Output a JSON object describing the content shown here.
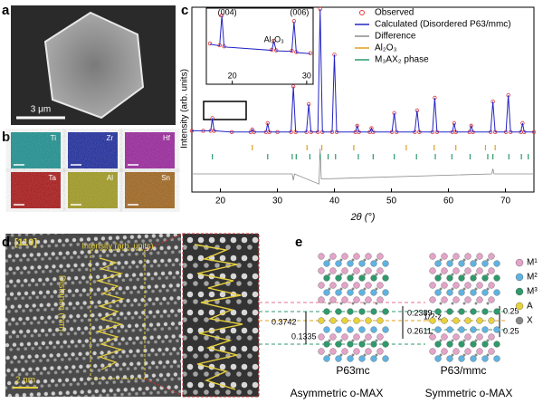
{
  "panels": {
    "a": {
      "label": "a",
      "scale_bar": "3 μm"
    },
    "b": {
      "label": "b",
      "maps": [
        {
          "element": "Ti",
          "color": "#1aa5a5"
        },
        {
          "element": "Zr",
          "color": "#1c2db5"
        },
        {
          "element": "Hf",
          "color": "#b024b4"
        },
        {
          "element": "Ta",
          "color": "#c41414"
        },
        {
          "element": "Al",
          "color": "#b9b21e"
        },
        {
          "element": "Sn",
          "color": "#b8721c"
        }
      ]
    },
    "c": {
      "label": "c"
    },
    "d": {
      "label": "d",
      "zone_axis": "[110]",
      "profile_label": "Intensity (arb. units)",
      "distance_label": "Distance (nm)",
      "scale_bar": "2 nm"
    },
    "e": {
      "label": "e",
      "legend": [
        {
          "name": "M¹",
          "color": "#e4a4c8"
        },
        {
          "name": "M²",
          "color": "#5fb3e3"
        },
        {
          "name": "M³",
          "color": "#2f9a6c"
        },
        {
          "name": "A",
          "color": "#e8d23c"
        },
        {
          "name": "X",
          "color": "#888888"
        }
      ],
      "asymmetric": {
        "group": "P63mc",
        "caption": "Asymmetric o-MAX",
        "distances": [
          "0.2389",
          "0.3742",
          "0.2611",
          "0.1335"
        ]
      },
      "symmetric": {
        "group": "P63/mmc",
        "caption": "Symmetric o-MAX",
        "distances": [
          "0.25",
          "0.25"
        ],
        "params": [
          "1/2-z",
          "z"
        ]
      }
    }
  },
  "chart_data": {
    "type": "line",
    "xlabel": "2θ (°)",
    "ylabel": "Intensity (arb. units)",
    "xlim": [
      15,
      75
    ],
    "xticks": [
      20,
      30,
      40,
      50,
      60,
      70
    ],
    "ylim": [
      0,
      100
    ],
    "x": [
      15,
      17,
      18.3,
      18.6,
      18.9,
      22,
      25.3,
      25.6,
      25.9,
      28,
      28.3,
      28.6,
      30,
      32.4,
      32.8,
      33.2,
      35.1,
      35.5,
      35.9,
      37.1,
      37.5,
      37.9,
      39.6,
      40,
      40.4,
      43.7,
      44,
      44.3,
      46.2,
      46.5,
      46.8,
      50.1,
      50.5,
      50.9,
      54.1,
      54.5,
      54.9,
      57.2,
      57.6,
      58,
      60.7,
      61,
      61.3,
      63.7,
      64,
      64.3,
      67.4,
      67.8,
      68.2,
      70.1,
      70.5,
      70.9,
      72.7,
      73,
      73.3,
      75
    ],
    "series": [
      {
        "name": "Observed",
        "color": "#e03a3a",
        "values": [
          4,
          4,
          4,
          14,
          4,
          3,
          3,
          5,
          3,
          3,
          10,
          3,
          3,
          3,
          39,
          3,
          3,
          25,
          3,
          3,
          100,
          3,
          3,
          64,
          3,
          3,
          8,
          3,
          3,
          6,
          3,
          3,
          18,
          3,
          3,
          20,
          3,
          3,
          30,
          3,
          3,
          10,
          3,
          3,
          8,
          3,
          3,
          27,
          3,
          3,
          32,
          3,
          3,
          10,
          3,
          3
        ]
      },
      {
        "name": "Calculated  (Disordered  P63/mmc)",
        "color": "#2323c4",
        "values": [
          4,
          4,
          4,
          14,
          4,
          3,
          3,
          5,
          3,
          3,
          10,
          3,
          3,
          3,
          39,
          3,
          3,
          25,
          3,
          3,
          100,
          3,
          3,
          64,
          3,
          3,
          8,
          3,
          3,
          6,
          3,
          3,
          18,
          3,
          3,
          20,
          3,
          3,
          30,
          3,
          3,
          10,
          3,
          3,
          8,
          3,
          3,
          27,
          3,
          3,
          32,
          3,
          3,
          10,
          3,
          3
        ]
      },
      {
        "name": "Difference",
        "color": "#8a8a8a",
        "x": [
          15,
          32.6,
          32.8,
          33,
          37.3,
          37.5,
          37.7,
          67.6,
          67.8,
          68,
          75
        ],
        "values": [
          0,
          0,
          -5,
          0,
          -8,
          20,
          -4,
          0,
          4,
          0,
          0
        ]
      }
    ],
    "reflections": [
      {
        "name": "Al₂O₃",
        "color": "#e0a020",
        "positions": [
          25.6,
          35.2,
          37.8,
          43.4,
          52.6,
          57.5,
          61.3,
          66.5,
          68.2
        ]
      },
      {
        "name": "M₃AX₂ phase",
        "color": "#2a9a6a",
        "positions": [
          18.6,
          28.3,
          32.6,
          33.3,
          35.7,
          37.5,
          38.9,
          40.2,
          44.2,
          46.8,
          50.5,
          54.4,
          57.7,
          60.6,
          63.8,
          66.9,
          67.8,
          70.6,
          72.8,
          74
        ]
      }
    ],
    "inset": {
      "xlim": [
        17,
        30.5
      ],
      "xticks": [
        20,
        30
      ],
      "ylim": [
        0,
        100
      ],
      "x": [
        17,
        18.3,
        18.6,
        18.9,
        25.3,
        25.6,
        25.9,
        28,
        28.3,
        28.6,
        30.5
      ],
      "observed": [
        45,
        42,
        95,
        40,
        34,
        50,
        33,
        32,
        85,
        30,
        28
      ],
      "calculated": [
        44,
        41,
        95,
        39,
        33,
        49,
        32,
        31,
        84,
        29,
        27
      ],
      "annotations": [
        {
          "text": "(004)",
          "x": 18.6
        },
        {
          "text": "Al₂O₃",
          "x": 25.6
        },
        {
          "text": "(006)",
          "x": 28.3
        }
      ]
    }
  }
}
